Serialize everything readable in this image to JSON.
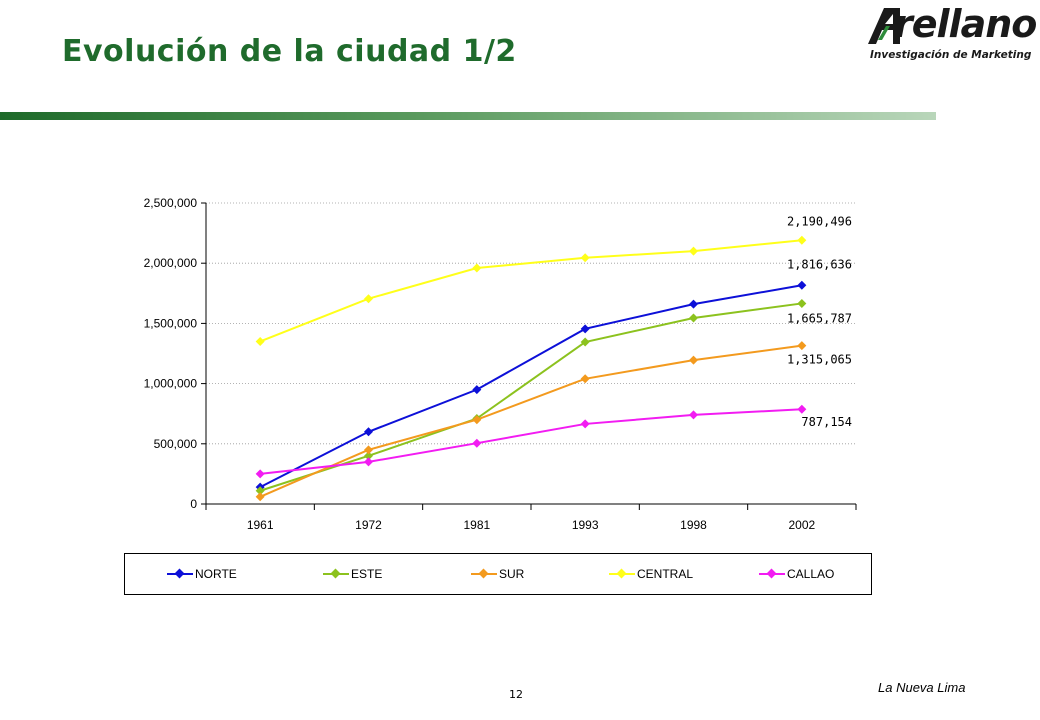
{
  "slide": {
    "title": "Evolución de la ciudad 1/2",
    "page_number": "12",
    "footer": "La Nueva Lima"
  },
  "logo": {
    "word": "rellano",
    "tagline": "Investigación de Marketing",
    "icon": "arellano-a-logo-icon"
  },
  "colors": {
    "title": "#1f6b2c",
    "NORTE": "#0d10d8",
    "ESTE": "#8cc21e",
    "SUR": "#f39a1e",
    "CENTRAL": "#ffff1a",
    "CALLAO": "#f21cf2"
  },
  "chart_data": {
    "type": "line",
    "x": [
      "1961",
      "1972",
      "1981",
      "1993",
      "1998",
      "2002"
    ],
    "ylim": [
      0,
      2500000
    ],
    "yticks": [
      "0",
      "500,000",
      "1,000,000",
      "1,500,000",
      "2,000,000",
      "2,500,000"
    ],
    "grid": true,
    "legend_position": "bottom",
    "marker": "diamond",
    "series": [
      {
        "name": "NORTE",
        "values": [
          140000,
          600000,
          950000,
          1455000,
          1660000,
          1816636
        ]
      },
      {
        "name": "ESTE",
        "values": [
          110000,
          400000,
          710000,
          1345000,
          1545000,
          1665787
        ]
      },
      {
        "name": "SUR",
        "values": [
          60000,
          450000,
          700000,
          1040000,
          1195000,
          1315065
        ]
      },
      {
        "name": "CENTRAL",
        "values": [
          1350000,
          1705000,
          1960000,
          2045000,
          2100000,
          2190496
        ]
      },
      {
        "name": "CALLAO",
        "values": [
          250000,
          350000,
          505000,
          665000,
          740000,
          787154
        ]
      }
    ],
    "annotations": [
      {
        "series": "CENTRAL",
        "text": "2,190,496"
      },
      {
        "series": "NORTE",
        "text": "1,816,636"
      },
      {
        "series": "ESTE",
        "text": "1,665,787"
      },
      {
        "series": "SUR",
        "text": "1,315,065"
      },
      {
        "series": "CALLAO",
        "text": "787,154"
      }
    ]
  }
}
